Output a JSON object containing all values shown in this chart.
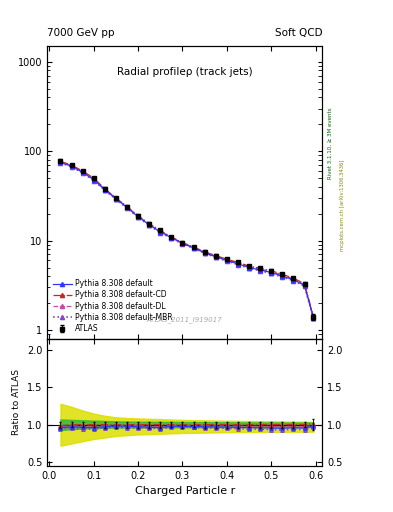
{
  "title_left": "7000 GeV pp",
  "title_right": "Soft QCD",
  "plot_title": "Radial profileρ (track jets)",
  "xlabel": "Charged Particle r",
  "ylabel_ratio": "Ratio to ATLAS",
  "watermark": "ATLAS_2011_I919017",
  "rivet_label": "Rivet 3.1.10, ≥ 3M events",
  "mcplots_label": "mcplots.cern.ch [arXiv:1306.3436]",
  "r_values": [
    0.025,
    0.05,
    0.075,
    0.1,
    0.125,
    0.15,
    0.175,
    0.2,
    0.225,
    0.25,
    0.275,
    0.3,
    0.325,
    0.35,
    0.375,
    0.4,
    0.425,
    0.45,
    0.475,
    0.5,
    0.525,
    0.55,
    0.575,
    0.595
  ],
  "atlas_values": [
    78,
    70,
    60,
    50,
    38,
    30,
    24,
    19,
    15.5,
    13,
    11,
    9.5,
    8.5,
    7.5,
    6.8,
    6.2,
    5.7,
    5.2,
    4.9,
    4.6,
    4.2,
    3.8,
    3.3,
    1.4
  ],
  "atlas_errors": [
    3,
    2.5,
    2,
    1.8,
    1.4,
    1.1,
    0.9,
    0.7,
    0.6,
    0.5,
    0.4,
    0.35,
    0.3,
    0.28,
    0.25,
    0.23,
    0.21,
    0.19,
    0.18,
    0.17,
    0.16,
    0.14,
    0.12,
    0.1
  ],
  "pythia_default": [
    75,
    68,
    58,
    48,
    37,
    29.5,
    23.5,
    18.5,
    15,
    12.5,
    10.8,
    9.3,
    8.3,
    7.3,
    6.6,
    6.0,
    5.5,
    5.0,
    4.7,
    4.4,
    4.0,
    3.65,
    3.15,
    1.38
  ],
  "pythia_cd": [
    77,
    70,
    60,
    50,
    38,
    30,
    24,
    19,
    15.5,
    13,
    11,
    9.5,
    8.5,
    7.5,
    6.8,
    6.2,
    5.7,
    5.2,
    4.9,
    4.6,
    4.2,
    3.8,
    3.3,
    1.42
  ],
  "pythia_dl": [
    76,
    69,
    59,
    49,
    37.5,
    29.8,
    23.8,
    18.8,
    15.2,
    12.7,
    10.9,
    9.4,
    8.4,
    7.4,
    6.7,
    6.1,
    5.6,
    5.1,
    4.8,
    4.5,
    4.1,
    3.72,
    3.22,
    1.39
  ],
  "pythia_mbr": [
    74,
    67,
    57,
    47,
    36.5,
    29,
    23,
    18.2,
    14.8,
    12.3,
    10.6,
    9.2,
    8.2,
    7.2,
    6.5,
    5.9,
    5.4,
    4.9,
    4.6,
    4.3,
    3.9,
    3.58,
    3.08,
    1.35
  ],
  "band_68_lo": [
    0.93,
    0.94,
    0.95,
    0.955,
    0.96,
    0.962,
    0.963,
    0.964,
    0.965,
    0.965,
    0.966,
    0.967,
    0.967,
    0.968,
    0.968,
    0.969,
    0.969,
    0.969,
    0.97,
    0.97,
    0.97,
    0.97,
    0.97,
    0.97
  ],
  "band_68_hi": [
    1.07,
    1.065,
    1.06,
    1.055,
    1.05,
    1.045,
    1.043,
    1.041,
    1.04,
    1.039,
    1.038,
    1.037,
    1.036,
    1.035,
    1.034,
    1.033,
    1.032,
    1.032,
    1.031,
    1.031,
    1.03,
    1.03,
    1.03,
    1.03
  ],
  "band_95_lo": [
    0.72,
    0.75,
    0.78,
    0.81,
    0.83,
    0.85,
    0.86,
    0.87,
    0.875,
    0.88,
    0.885,
    0.89,
    0.892,
    0.895,
    0.898,
    0.9,
    0.902,
    0.903,
    0.904,
    0.905,
    0.905,
    0.906,
    0.907,
    0.908
  ],
  "band_95_hi": [
    1.28,
    1.24,
    1.19,
    1.15,
    1.12,
    1.1,
    1.09,
    1.085,
    1.08,
    1.075,
    1.07,
    1.065,
    1.062,
    1.059,
    1.056,
    1.054,
    1.052,
    1.05,
    1.048,
    1.046,
    1.044,
    1.042,
    1.04,
    1.038
  ],
  "color_atlas": "#000000",
  "color_default": "#3333ff",
  "color_cd": "#cc2222",
  "color_dl": "#cc44aa",
  "color_mbr": "#8844cc",
  "color_band_68": "#33bb33",
  "color_band_95": "#dddd00",
  "ylim_main": [
    0.8,
    1500
  ],
  "ylim_ratio": [
    0.45,
    2.15
  ],
  "yticks_ratio": [
    0.5,
    1.0,
    1.5,
    2.0
  ]
}
